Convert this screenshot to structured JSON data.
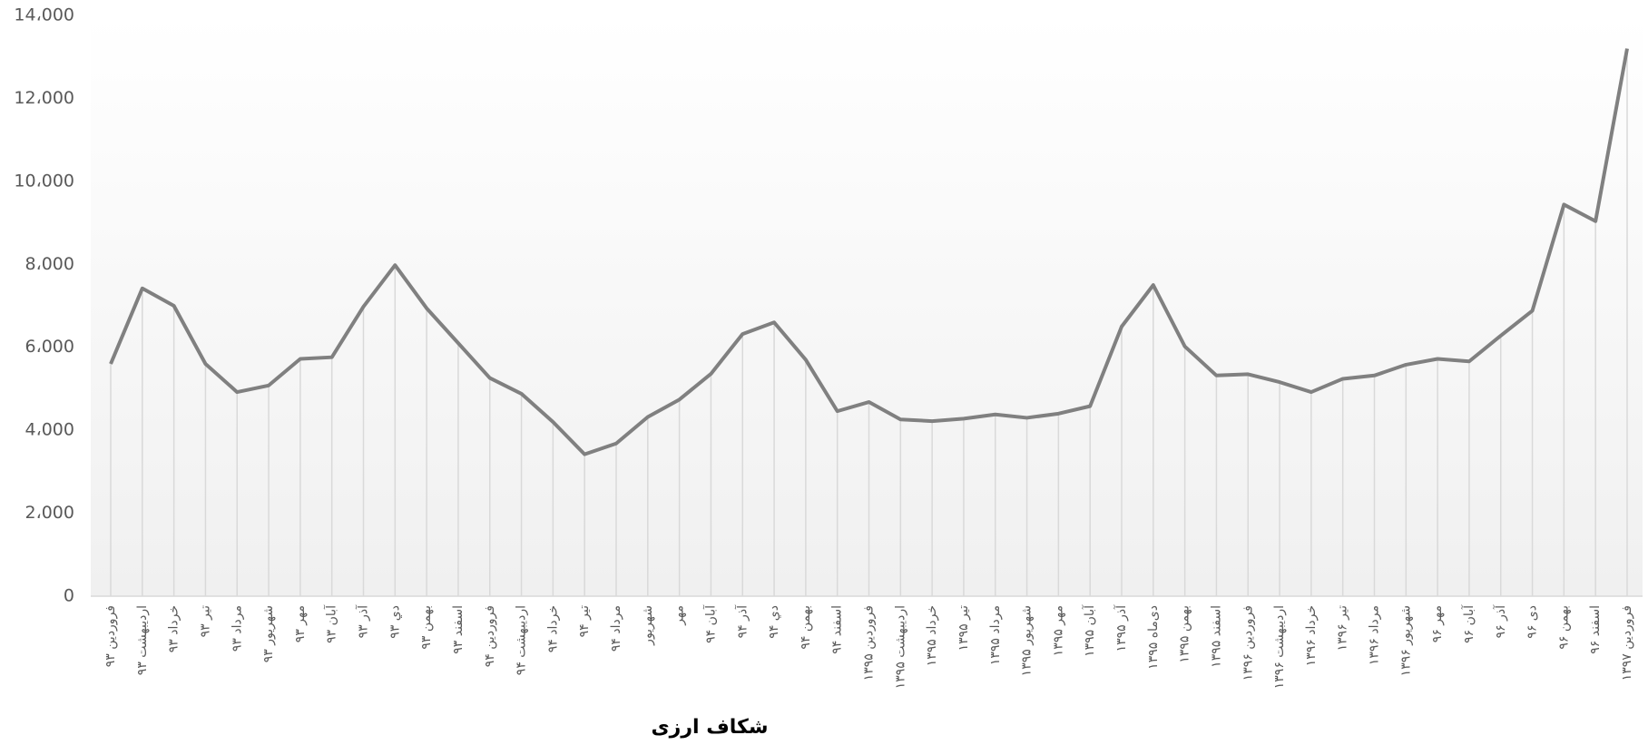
{
  "chart_data": {
    "type": "line",
    "title": "شکاف ارزی",
    "categories": [
      "فروردین ۹۳",
      "اردیبهشت ۹۳",
      "خرداد ۹۳",
      "تیر ۹۳",
      "مرداد ۹۳",
      "شهریور ۹۳",
      "مهر ۹۳",
      "آبان ۹۳",
      "آذر ۹۳",
      "دي ۹۳",
      "بهمن ۹۳",
      "اسفند ۹۳",
      "فروردین ۹۴",
      "اردیبهشت ۹۴",
      "خرداد ۹۴",
      "تیر ۹۴",
      "مرداد ۹۴",
      "شهریور",
      "مهر",
      "آبان ۹۴",
      "آذر ۹۴",
      "دي ۹۴",
      "بهمن ۹۴",
      "اسفند ۹۴",
      "فروردین ۱۳۹۵",
      "اردیبهشت ۱۳۹۵",
      "خرداد ۱۳۹۵",
      "تیر ۱۳۹۵",
      "مرداد ۱۳۹۵",
      "شهریور ۱۳۹۵",
      "مهر ۱۳۹۵",
      "آبان ۱۳۹۵",
      "آذر ۱۳۹۵",
      "دی‌ماه ۱۳۹۵",
      "بهمن ۱۳۹۵",
      "اسفند ۱۳۹۵",
      "فروردین ۱۳۹۶",
      "اردیبهشت ۱۳۹۶",
      "خرداد ۱۳۹۶",
      "تیر ۱۳۹۶",
      "مرداد ۱۳۹۶",
      "شهریور ۱۳۹۶",
      "مهر ۹۶",
      "آبان ۹۶",
      "آذر ۹۶",
      "دی ۹۶",
      "بهمن ۹۶",
      "اسفند ۹۶",
      "فروردین ۱۳۹۷"
    ],
    "values": [
      5600,
      7420,
      7000,
      5600,
      4920,
      5080,
      5720,
      5760,
      6980,
      7980,
      6940,
      6100,
      5260,
      4880,
      4200,
      3420,
      3680,
      4320,
      4740,
      5360,
      6320,
      6600,
      5700,
      4460,
      4680,
      4260,
      4220,
      4280,
      4380,
      4300,
      4400,
      4580,
      6500,
      7500,
      6020,
      5320,
      5350,
      5160,
      4920,
      5240,
      5320,
      5580,
      5720,
      5660,
      6280,
      6880,
      9440,
      9040,
      13200
    ],
    "color": "#808080",
    "drop_line_color": "#d9d9d9",
    "ylim": [
      0,
      14000
    ],
    "yticks": [
      0,
      {
        "value": 2000,
        "label": "2،000"
      },
      {
        "value": 4000,
        "label": "4،000"
      },
      {
        "value": 6000,
        "label": "6،000"
      },
      {
        "value": 8000,
        "label": "8،000"
      },
      {
        "value": 10000,
        "label": "10،000"
      },
      {
        "value": 12000,
        "label": "12،000"
      },
      {
        "value": 14000,
        "label": "14،000"
      }
    ]
  }
}
